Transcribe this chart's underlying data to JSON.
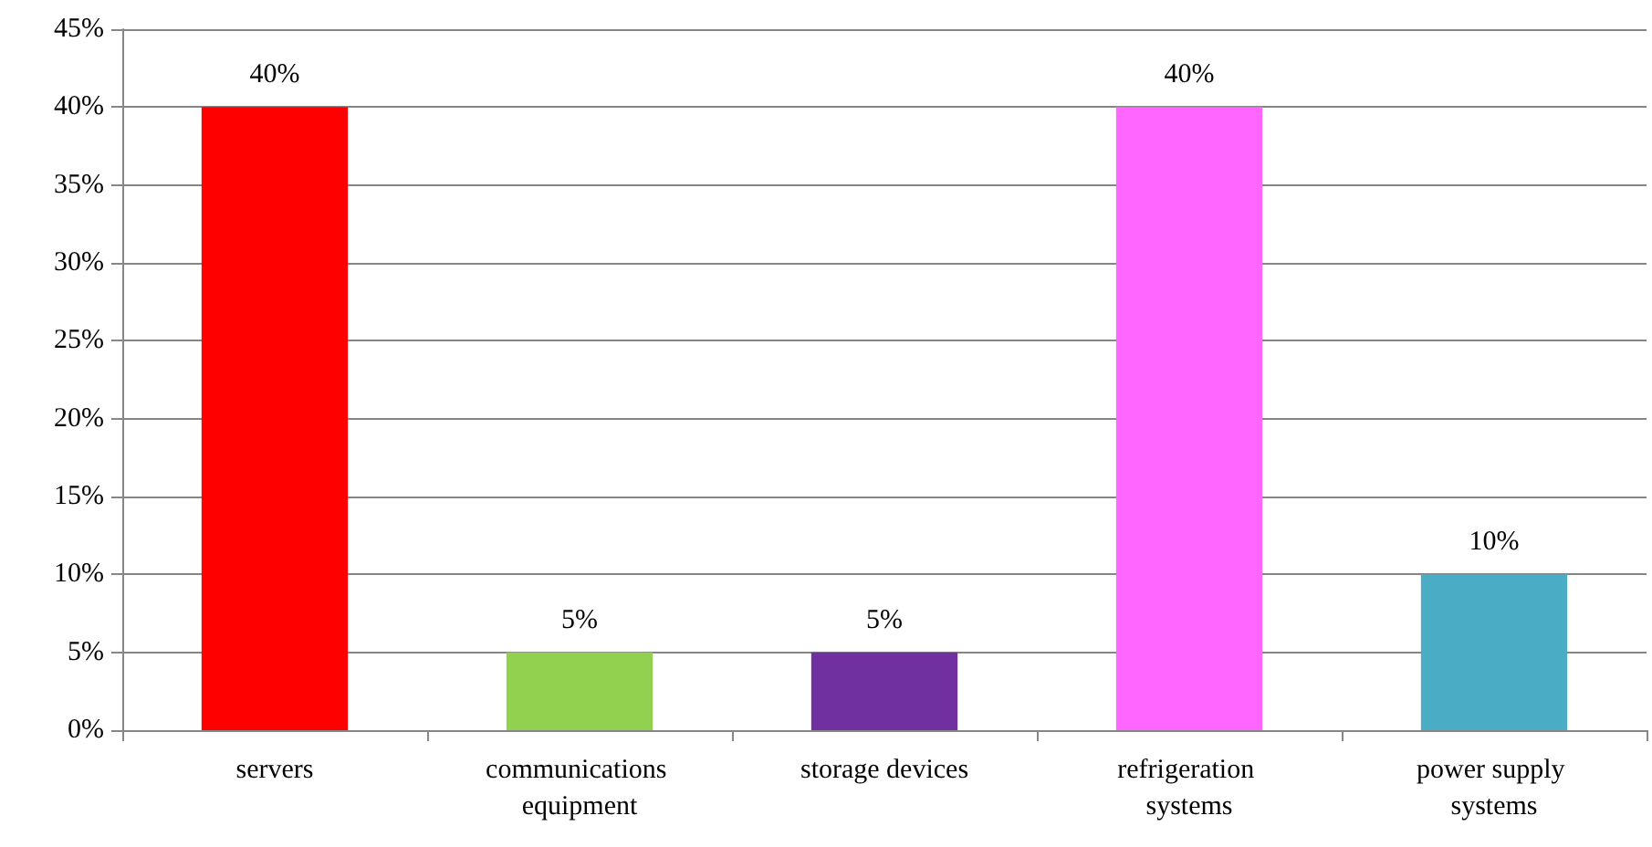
{
  "chart_data": {
    "type": "bar",
    "categories": [
      "servers",
      "communications equipment",
      "storage devices",
      "refrigeration systems",
      "power supply systems"
    ],
    "values": [
      40,
      5,
      5,
      40,
      10
    ],
    "colors": [
      "#ff0000",
      "#92d050",
      "#7030a0",
      "#ff66ff",
      "#4bacc6"
    ],
    "value_labels": [
      "40%",
      "5%",
      "5%",
      "40%",
      "10%"
    ],
    "ylim": [
      0,
      45
    ],
    "yticks": [
      {
        "value": 0,
        "label": "0%"
      },
      {
        "value": 5,
        "label": "5%"
      },
      {
        "value": 10,
        "label": "10%"
      },
      {
        "value": 15,
        "label": "15%"
      },
      {
        "value": 20,
        "label": "20%"
      },
      {
        "value": 25,
        "label": "25%"
      },
      {
        "value": 30,
        "label": "30%"
      },
      {
        "value": 35,
        "label": "35%"
      },
      {
        "value": 40,
        "label": "40%"
      },
      {
        "value": 45,
        "label": "45%"
      }
    ],
    "grid": "y"
  }
}
